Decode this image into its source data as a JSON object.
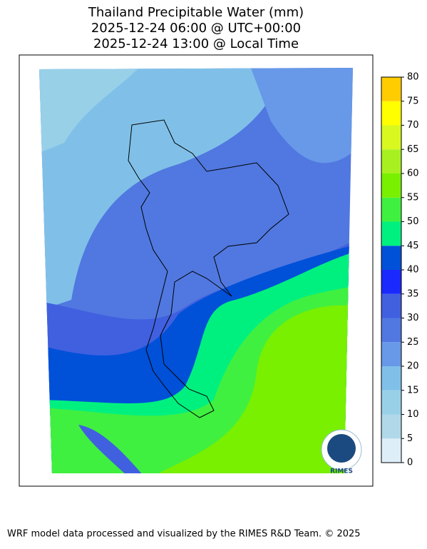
{
  "title": [
    "Thailand Precipitable Water (mm)",
    "2025-12-24 06:00 @ UTC+00:00",
    "2025-12-24 13:00 @ Local Time"
  ],
  "colorbar": {
    "ticks": [
      0,
      5,
      10,
      15,
      20,
      25,
      30,
      35,
      40,
      45,
      50,
      55,
      60,
      65,
      70,
      75,
      80
    ],
    "colors": [
      "#ddeef8",
      "#b0d8e8",
      "#98d0e8",
      "#80c0e8",
      "#6898e8",
      "#5078e0",
      "#4060e0",
      "#1a2aff",
      "#0050d8",
      "#00f080",
      "#40f040",
      "#78f000",
      "#a8f020",
      "#d8f820",
      "#ffff00",
      "#ffcc00"
    ]
  },
  "logo": "RIMES",
  "footer": "WRF model data processed and visualized by the RIMES R&D Team. © 2025"
}
